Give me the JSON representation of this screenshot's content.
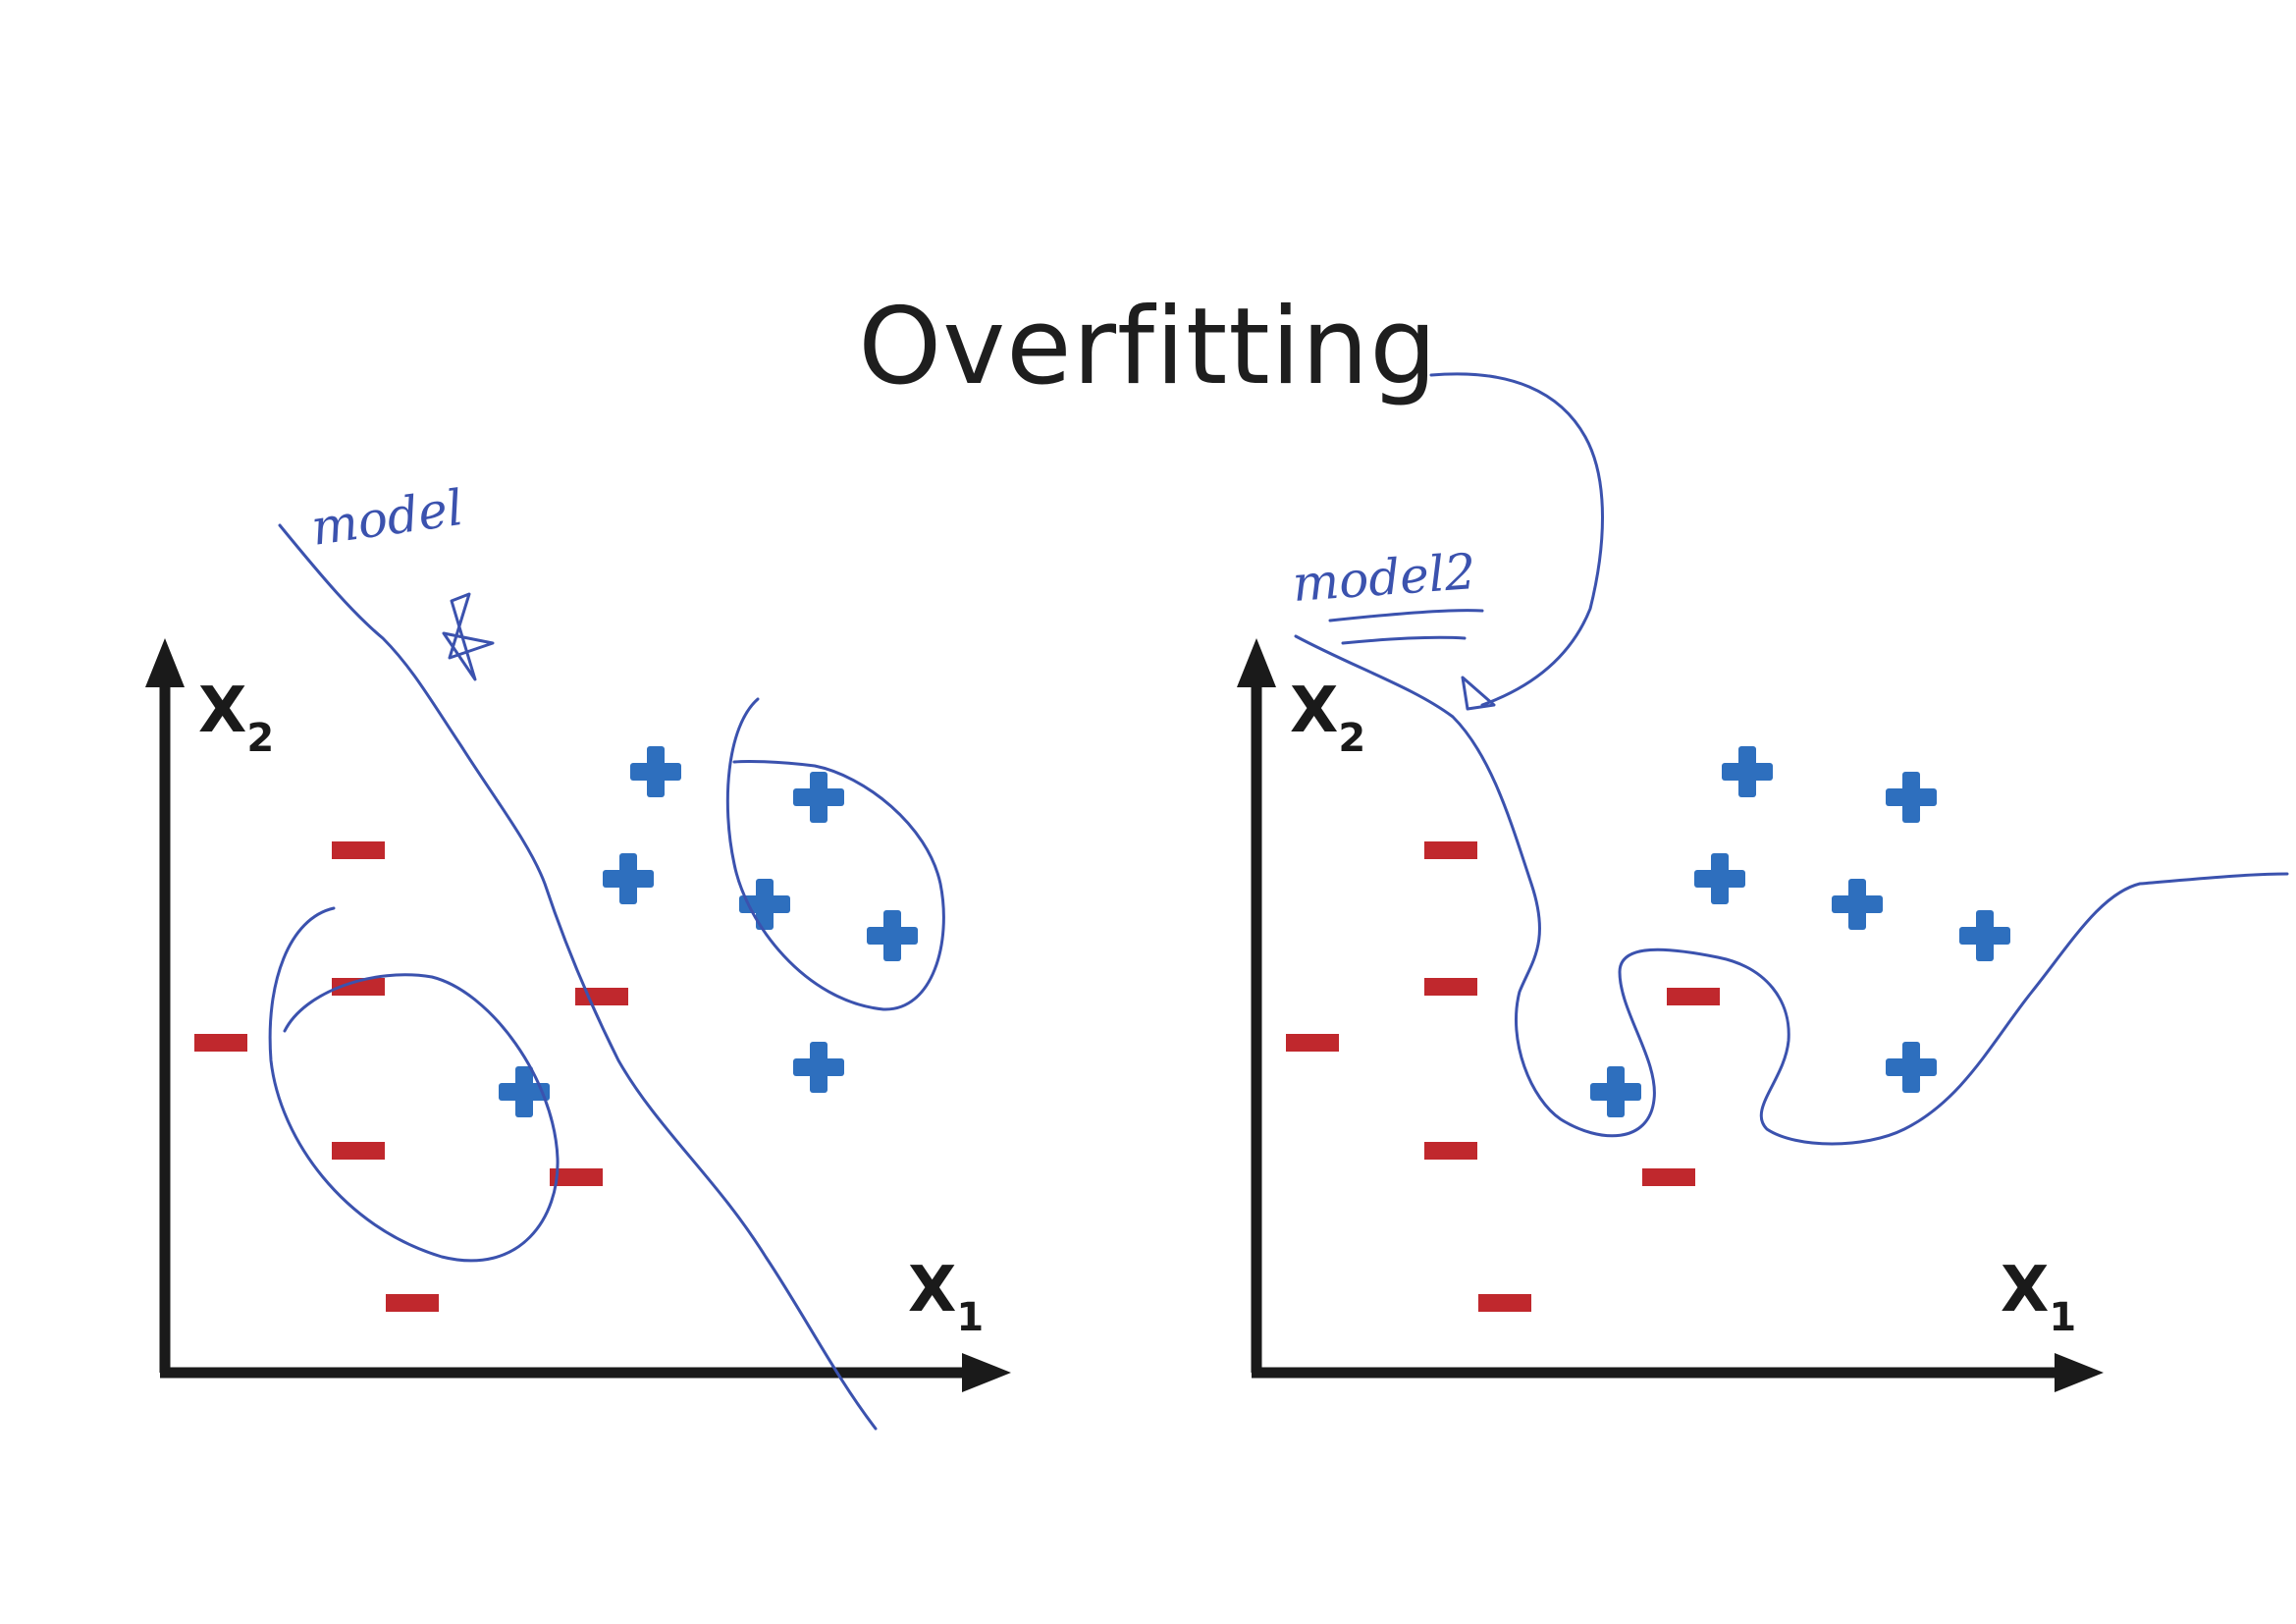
{
  "title": "Overfitting",
  "colors": {
    "negative": "#c0282d",
    "positive": "#2e6fbe",
    "axis": "#1a1a1a",
    "ink": "#3b52ae"
  },
  "panels": [
    {
      "name": "left-panel",
      "x_axis_label": "X",
      "x_axis_subscript": "1",
      "y_axis_label": "X",
      "y_axis_subscript": "2"
    },
    {
      "name": "right-panel",
      "x_axis_label": "X",
      "x_axis_subscript": "1",
      "y_axis_label": "X",
      "y_axis_subscript": "2"
    }
  ],
  "annotations": {
    "left_note": "model",
    "right_note": "model2"
  }
}
